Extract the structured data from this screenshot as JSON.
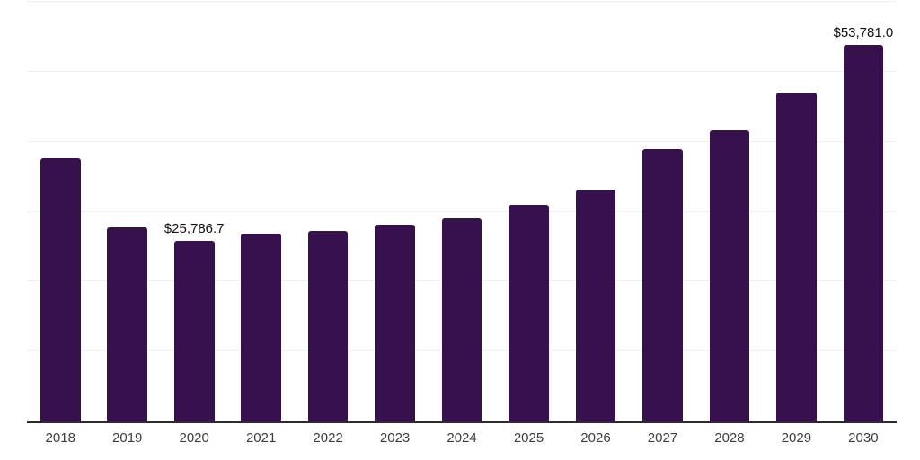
{
  "chart_data": {
    "type": "bar",
    "title": "",
    "xlabel": "",
    "ylabel": "",
    "categories": [
      "2018",
      "2019",
      "2020",
      "2021",
      "2022",
      "2023",
      "2024",
      "2025",
      "2026",
      "2027",
      "2028",
      "2029",
      "2030"
    ],
    "values": [
      37700,
      27800,
      25786.7,
      26800,
      27300,
      28100,
      29100,
      31000,
      33200,
      38900,
      41600,
      47000,
      53781.0
    ],
    "ylim": [
      0,
      60000
    ],
    "gridline_step": 10000,
    "grid": true,
    "legend": false,
    "bar_color": "#36114d",
    "axis_line_color": "#2b2b2b",
    "gridline_color": "#f0f0f0",
    "label_color": "#111111",
    "tick_label_color": "#3d3d3d",
    "annotations": [
      {
        "category": "2020",
        "text": "$25,786.7"
      },
      {
        "category": "2030",
        "text": "$53,781.0"
      }
    ]
  }
}
